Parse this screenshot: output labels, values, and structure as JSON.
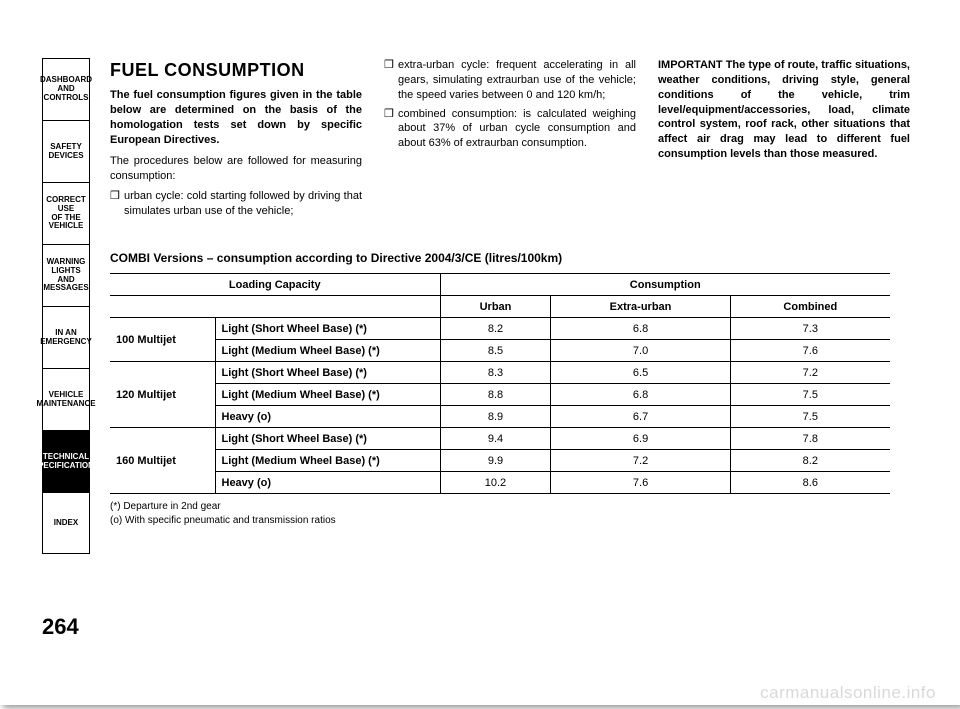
{
  "watermark": "carmanualsonline.info",
  "page_number": "264",
  "tabs": [
    {
      "label": "DASHBOARD\nAND CONTROLS",
      "active": false
    },
    {
      "label": "SAFETY\nDEVICES",
      "active": false
    },
    {
      "label": "CORRECT USE\nOF THE VEHICLE",
      "active": false
    },
    {
      "label": "WARNING\nLIGHTS AND\nMESSAGES",
      "active": false
    },
    {
      "label": "IN AN\nEMERGENCY",
      "active": false
    },
    {
      "label": "VEHICLE\nMAINTENANCE",
      "active": false
    },
    {
      "label": "TECHNICAL\nSPECIFICATIONS",
      "active": true
    },
    {
      "label": "INDEX",
      "active": false
    }
  ],
  "col1": {
    "heading": "FUEL CONSUMPTION",
    "p1": "The fuel consumption figures given in the table below are determined on the basis of the homologation tests set down by specific European Directives.",
    "p2": "The procedures below are followed for measuring consumption:",
    "li1": "urban cycle: cold starting followed by driving that simulates urban use of the vehicle;"
  },
  "col2": {
    "li1": "extra-urban cycle: frequent acceler­ating in all gears, simulating extraurban use of the vehicle; the speed varies be­tween 0 and 120 km/h;",
    "li2": "combined consumption: is calculated weighing about 37% of urban cycle consumption and about 63% of ex­traurban consumption."
  },
  "col3": {
    "p1": "IMPORTANT The type of route, traffic situations, weather conditions, driving style, general conditions of the vehicle, trim level/equipment/accessories, load, cli­mate control system, roof rack, other sit­uations that affect air drag may lead to dif­ferent fuel consumption levels than those measured."
  },
  "table": {
    "title": "COMBI Versions – consumption according to Directive 2004/3/CE (litres/100km)",
    "header1": {
      "loading": "Loading Capacity",
      "consumption": "Consumption"
    },
    "header2": {
      "urban": "Urban",
      "extra": "Extra-urban",
      "combined": "Combined"
    },
    "groups": [
      {
        "name": "100 Multijet",
        "rows": [
          {
            "load": "Light (Short Wheel Base) (*)",
            "urban": "8.2",
            "extra": "6.8",
            "combined": "7.3"
          },
          {
            "load": "Light (Medium Wheel Base) (*)",
            "urban": "8.5",
            "extra": "7.0",
            "combined": "7.6"
          }
        ]
      },
      {
        "name": "120 Multijet",
        "rows": [
          {
            "load": "Light (Short Wheel Base) (*)",
            "urban": "8.3",
            "extra": "6.5",
            "combined": "7.2"
          },
          {
            "load": "Light (Medium Wheel Base) (*)",
            "urban": "8.8",
            "extra": "6.8",
            "combined": "7.5"
          },
          {
            "load": "Heavy (o)",
            "urban": "8.9",
            "extra": "6.7",
            "combined": "7.5"
          }
        ]
      },
      {
        "name": "160 Multijet",
        "rows": [
          {
            "load": "Light (Short Wheel Base) (*)",
            "urban": "9.4",
            "extra": "6.9",
            "combined": "7.8"
          },
          {
            "load": "Light (Medium Wheel Base) (*)",
            "urban": "9.9",
            "extra": "7.2",
            "combined": "8.2"
          },
          {
            "load": "Heavy (o)",
            "urban": "10.2",
            "extra": "7.6",
            "combined": "8.6"
          }
        ]
      }
    ],
    "footnote1": "(*) Departure in 2nd gear",
    "footnote2": "(o) With specific pneumatic and transmission ratios"
  }
}
